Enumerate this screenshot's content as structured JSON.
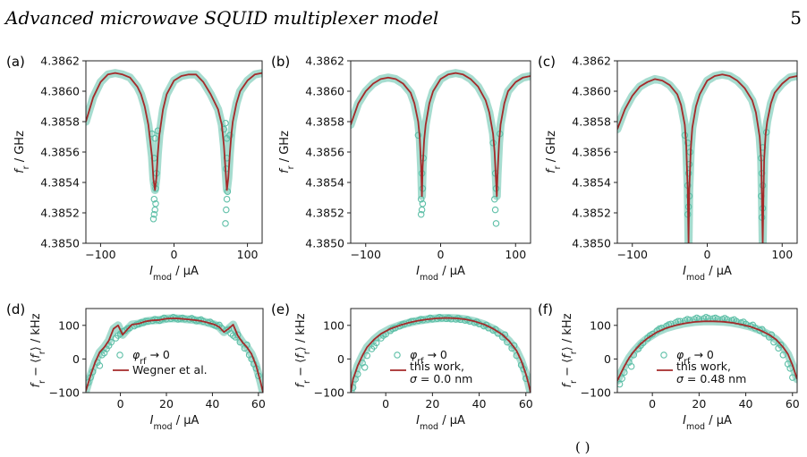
{
  "header": {
    "running_title": "Advanced microwave SQUID multiplexer model",
    "page_number": "5"
  },
  "footer_fragment": "(    )",
  "colors": {
    "measurement": "#5dbfa7",
    "model": "#a52a2a",
    "axis": "#222222"
  },
  "chart_data": [
    {
      "id": "a",
      "panel_label": "(a)",
      "type": "scatter+line",
      "xlabel": "I_mod / µA",
      "ylabel": "f_r / GHz",
      "xlim": [
        -120,
        120
      ],
      "ylim": [
        4.385,
        4.3862
      ],
      "xticks": [
        -100,
        0,
        100
      ],
      "yticks": [
        "4.3850",
        "4.3852",
        "4.3854",
        "4.3856",
        "4.3858",
        "4.3860",
        "4.3862"
      ],
      "series": [
        {
          "kind": "scatter",
          "x": [
            -28,
            -27,
            -26,
            -25,
            -27,
            -25,
            -26,
            -24,
            -27,
            -26,
            70,
            71,
            72,
            73,
            71,
            72,
            72,
            70,
            -22,
            -30,
            76,
            68
          ],
          "y": [
            4.38516,
            4.38519,
            4.38522,
            4.38526,
            4.38529,
            4.38536,
            4.38539,
            4.38546,
            4.38556,
            4.38569,
            4.38513,
            4.38522,
            4.38529,
            4.38534,
            4.38549,
            4.38556,
            4.38569,
            4.38579,
            4.38574,
            4.38572,
            4.38571,
            4.38575
          ]
        },
        {
          "kind": "line",
          "x": [
            -120,
            -110,
            -100,
            -90,
            -80,
            -70,
            -60,
            -50,
            -45,
            -40,
            -35,
            -30,
            -28,
            -26,
            -24,
            -22,
            -20,
            -15,
            -10,
            0,
            10,
            20,
            30,
            40,
            50,
            60,
            65,
            68,
            70,
            72,
            74,
            76,
            78,
            80,
            85,
            90,
            100,
            110,
            120
          ],
          "y": [
            4.3858,
            4.38596,
            4.38606,
            4.38611,
            4.38612,
            4.38611,
            4.38609,
            4.38603,
            4.38598,
            4.3859,
            4.38578,
            4.38557,
            4.38542,
            4.38535,
            4.38543,
            4.38559,
            4.38571,
            4.38588,
            4.38598,
            4.38607,
            4.3861,
            4.38611,
            4.38611,
            4.38606,
            4.38598,
            4.38588,
            4.38578,
            4.38564,
            4.38549,
            4.38535,
            4.38543,
            4.38559,
            4.38571,
            4.3858,
            4.38592,
            4.386,
            4.38607,
            4.38611,
            4.38612
          ]
        }
      ]
    },
    {
      "id": "b",
      "panel_label": "(b)",
      "type": "scatter+line",
      "xlabel": "I_mod / µA",
      "ylabel": "f_r / GHz",
      "xlim": [
        -120,
        120
      ],
      "ylim": [
        4.385,
        4.3862
      ],
      "xticks": [
        -100,
        0,
        100
      ],
      "yticks": [
        "4.3850",
        "4.3852",
        "4.3854",
        "4.3856",
        "4.3858",
        "4.3860",
        "4.3862"
      ],
      "series": [
        {
          "kind": "scatter",
          "x": [
            -26,
            -25,
            -24,
            -26,
            -24,
            -25,
            -23,
            74,
            73,
            72,
            74,
            73,
            -30,
            79,
            70
          ],
          "y": [
            4.38519,
            4.38522,
            4.38526,
            4.38529,
            4.38536,
            4.38546,
            4.38556,
            4.38513,
            4.38522,
            4.38529,
            4.38536,
            4.38546,
            4.38571,
            4.38572,
            4.38566
          ]
        },
        {
          "kind": "line",
          "x": [
            -120,
            -110,
            -100,
            -90,
            -80,
            -70,
            -60,
            -50,
            -40,
            -35,
            -30,
            -28,
            -26,
            -25,
            -24,
            -22,
            -20,
            -15,
            -10,
            0,
            10,
            20,
            30,
            40,
            50,
            60,
            65,
            70,
            72,
            74,
            75,
            76,
            78,
            80,
            85,
            90,
            100,
            110,
            120
          ],
          "y": [
            4.38578,
            4.38592,
            4.386,
            4.38605,
            4.38608,
            4.38609,
            4.38608,
            4.38605,
            4.38599,
            4.38592,
            4.3858,
            4.3857,
            4.3855,
            4.38531,
            4.3855,
            4.38568,
            4.38578,
            4.38592,
            4.386,
            4.38608,
            4.38611,
            4.38612,
            4.38611,
            4.38608,
            4.38603,
            4.38594,
            4.38586,
            4.38572,
            4.3856,
            4.3854,
            4.38531,
            4.38545,
            4.38566,
            4.38578,
            4.38592,
            4.386,
            4.38606,
            4.38609,
            4.3861
          ]
        }
      ]
    },
    {
      "id": "c",
      "panel_label": "(c)",
      "type": "scatter+line",
      "xlabel": "I_mod / µA",
      "ylabel": "f_r / GHz",
      "xlim": [
        -120,
        120
      ],
      "ylim": [
        4.385,
        4.3862
      ],
      "xticks": [
        -100,
        0,
        100
      ],
      "yticks": [
        "4.3850",
        "4.3852",
        "4.3854",
        "4.3856",
        "4.3858",
        "4.3860",
        "4.3862"
      ],
      "series": [
        {
          "kind": "scatter",
          "x": [
            -26,
            -25,
            -24,
            -26,
            -25,
            -24,
            -23,
            -26,
            73,
            74,
            72,
            74,
            73,
            72,
            74,
            -30,
            79
          ],
          "y": [
            4.38519,
            4.38524,
            4.38531,
            4.38538,
            4.38546,
            4.38552,
            4.3856,
            4.38566,
            4.38517,
            4.38523,
            4.38531,
            4.38538,
            4.38546,
            4.38556,
            4.38563,
            4.38571,
            4.38573
          ]
        },
        {
          "kind": "line",
          "x": [
            -120,
            -110,
            -100,
            -90,
            -80,
            -70,
            -60,
            -50,
            -40,
            -35,
            -30,
            -28,
            -26,
            -25,
            -24,
            -22,
            -20,
            -15,
            -10,
            0,
            10,
            20,
            30,
            40,
            50,
            60,
            65,
            70,
            72,
            73,
            74,
            75,
            76,
            78,
            80,
            85,
            90,
            100,
            110,
            120
          ],
          "y": [
            4.38575,
            4.38588,
            4.38597,
            4.38603,
            4.38606,
            4.38608,
            4.38607,
            4.38604,
            4.38598,
            4.38591,
            4.38578,
            4.38565,
            4.38535,
            4.385,
            4.38535,
            4.38562,
            4.38576,
            4.3859,
            4.38598,
            4.38607,
            4.3861,
            4.38611,
            4.3861,
            4.38607,
            4.38602,
            4.38594,
            4.38586,
            4.3857,
            4.38555,
            4.3853,
            4.385,
            4.3853,
            4.38555,
            4.38572,
            4.3858,
            4.38592,
            4.38599,
            4.38605,
            4.38609,
            4.3861
          ]
        }
      ]
    },
    {
      "id": "d",
      "panel_label": "(d)",
      "type": "scatter+line",
      "xlabel": "I_mod / µA",
      "ylabel": "f_r − ⟨f_r⟩ / kHz",
      "xlim": [
        -15,
        62
      ],
      "ylim": [
        -100,
        150
      ],
      "xticks": [
        0,
        20,
        40,
        60
      ],
      "yticks": [
        -100,
        0,
        100
      ],
      "legend": [
        "φ_rf → 0",
        "Wegner et al."
      ],
      "series": [
        {
          "kind": "scatter",
          "name": "φ_rf → 0",
          "x": [
            -14,
            -12,
            -10,
            -8,
            -6,
            -4,
            -2,
            0,
            2,
            4,
            6,
            8,
            10,
            12,
            14,
            16,
            18,
            20,
            22,
            24,
            26,
            28,
            30,
            32,
            34,
            36,
            38,
            40,
            42,
            44,
            46,
            48,
            50,
            52,
            54,
            56,
            58,
            60,
            -13,
            -9,
            -5,
            -1,
            3,
            7,
            11,
            15,
            19,
            23,
            27,
            31,
            35,
            39,
            43,
            47,
            51,
            55,
            59,
            -7,
            1,
            9,
            17,
            25,
            33,
            41,
            49,
            57
          ],
          "y": [
            -70,
            -38,
            -10,
            12,
            30,
            50,
            62,
            75,
            84,
            92,
            98,
            104,
            108,
            112,
            114,
            116,
            118,
            119,
            120,
            121,
            120,
            119,
            118,
            117,
            115,
            112,
            108,
            104,
            98,
            92,
            85,
            76,
            65,
            50,
            32,
            12,
            -15,
            -50,
            -55,
            -20,
            40,
            70,
            90,
            102,
            112,
            118,
            122,
            124,
            122,
            121,
            117,
            110,
            101,
            88,
            72,
            42,
            -28,
            18,
            82,
            108,
            114,
            118,
            113,
            100,
            70,
            0
          ]
        },
        {
          "kind": "line",
          "name": "Wegner et al.",
          "x": [
            -15,
            -13,
            -11,
            -9,
            -7,
            -5,
            -3,
            -1,
            1,
            3,
            5,
            8,
            11,
            14,
            17,
            20,
            23,
            26,
            29,
            32,
            35,
            38,
            41,
            43,
            45,
            47,
            49,
            51,
            53,
            55,
            57,
            59,
            61,
            62
          ],
          "y": [
            -95,
            -50,
            -10,
            20,
            35,
            55,
            90,
            100,
            72,
            88,
            102,
            105,
            112,
            115,
            116,
            120,
            121,
            120,
            118,
            116,
            113,
            108,
            102,
            95,
            80,
            90,
            102,
            70,
            50,
            35,
            15,
            -20,
            -70,
            -100
          ]
        }
      ]
    },
    {
      "id": "e",
      "panel_label": "(e)",
      "type": "scatter+line",
      "xlabel": "I_mod / µA",
      "ylabel": "f_r − ⟨f_r⟩ / kHz",
      "xlim": [
        -15,
        62
      ],
      "ylim": [
        -100,
        150
      ],
      "xticks": [
        0,
        20,
        40,
        60
      ],
      "yticks": [
        -100,
        0,
        100
      ],
      "legend": [
        "φ_rf → 0",
        "this work,",
        "σ = 0.0 nm"
      ],
      "series": [
        {
          "kind": "scatter",
          "name": "φ_rf → 0",
          "x": [
            -14,
            -12,
            -10,
            -8,
            -6,
            -4,
            -2,
            0,
            2,
            4,
            6,
            8,
            10,
            12,
            14,
            16,
            18,
            20,
            22,
            24,
            26,
            28,
            30,
            32,
            34,
            36,
            38,
            40,
            42,
            44,
            46,
            48,
            50,
            52,
            54,
            56,
            58,
            60,
            -13,
            -9,
            -5,
            -1,
            3,
            7,
            11,
            15,
            19,
            23,
            27,
            31,
            35,
            39,
            43,
            47,
            51,
            55,
            59
          ],
          "y": [
            -85,
            -45,
            -12,
            10,
            30,
            48,
            62,
            74,
            84,
            92,
            98,
            104,
            108,
            112,
            114,
            116,
            118,
            119,
            120,
            121,
            120,
            119,
            118,
            117,
            115,
            112,
            108,
            104,
            98,
            92,
            85,
            76,
            65,
            50,
            32,
            10,
            -18,
            -58,
            -60,
            -25,
            38,
            70,
            90,
            102,
            112,
            118,
            122,
            124,
            122,
            121,
            117,
            110,
            101,
            88,
            72,
            40,
            -30
          ]
        },
        {
          "kind": "line",
          "name": "this work, σ = 0.0 nm",
          "x": [
            -15,
            -14,
            -12,
            -10,
            -8,
            -5,
            -2,
            2,
            6,
            10,
            14,
            18,
            22,
            26,
            30,
            34,
            38,
            42,
            46,
            50,
            53,
            56,
            58,
            60,
            61,
            62
          ],
          "y": [
            -100,
            -60,
            -20,
            10,
            35,
            58,
            75,
            90,
            100,
            108,
            114,
            118,
            121,
            122,
            121,
            118,
            112,
            103,
            90,
            72,
            52,
            25,
            -5,
            -45,
            -70,
            -100
          ]
        }
      ]
    },
    {
      "id": "f",
      "panel_label": "(f)",
      "type": "scatter+line",
      "xlabel": "I_mod / µA",
      "ylabel": "f_r − ⟨f_r⟩ / kHz",
      "xlim": [
        -15,
        62
      ],
      "ylim": [
        -100,
        150
      ],
      "xticks": [
        0,
        20,
        40,
        60
      ],
      "yticks": [
        -100,
        0,
        100
      ],
      "legend": [
        "φ_rf → 0",
        "this work,",
        "σ = 0.48 nm"
      ],
      "series": [
        {
          "kind": "scatter",
          "name": "φ_rf → 0",
          "x": [
            -14,
            -12,
            -10,
            -8,
            -6,
            -4,
            -2,
            0,
            2,
            4,
            6,
            8,
            10,
            12,
            14,
            16,
            18,
            20,
            22,
            24,
            26,
            28,
            30,
            32,
            34,
            36,
            38,
            40,
            42,
            44,
            46,
            48,
            50,
            52,
            54,
            56,
            58,
            60,
            -13,
            -9,
            -5,
            -1,
            3,
            7,
            11,
            15,
            19,
            23,
            27,
            31,
            35,
            39,
            43,
            47,
            51,
            55,
            59
          ],
          "y": [
            -75,
            -40,
            -10,
            12,
            30,
            48,
            62,
            74,
            84,
            92,
            98,
            104,
            108,
            112,
            114,
            116,
            118,
            119,
            120,
            121,
            120,
            119,
            118,
            117,
            115,
            112,
            108,
            104,
            98,
            92,
            85,
            76,
            65,
            50,
            32,
            12,
            -15,
            -55,
            -58,
            -22,
            40,
            70,
            90,
            102,
            112,
            118,
            122,
            124,
            122,
            121,
            117,
            110,
            101,
            88,
            72,
            42,
            -28
          ]
        },
        {
          "kind": "line",
          "name": "this work, σ = 0.48 nm",
          "x": [
            -15,
            -14,
            -12,
            -10,
            -8,
            -5,
            -2,
            2,
            6,
            10,
            14,
            18,
            22,
            26,
            30,
            34,
            38,
            42,
            46,
            50,
            53,
            56,
            58,
            60,
            62
          ],
          "y": [
            -65,
            -50,
            -22,
            3,
            22,
            45,
            62,
            80,
            92,
            100,
            106,
            110,
            112,
            112,
            111,
            108,
            103,
            96,
            86,
            72,
            58,
            35,
            15,
            -18,
            -60
          ]
        }
      ]
    }
  ]
}
